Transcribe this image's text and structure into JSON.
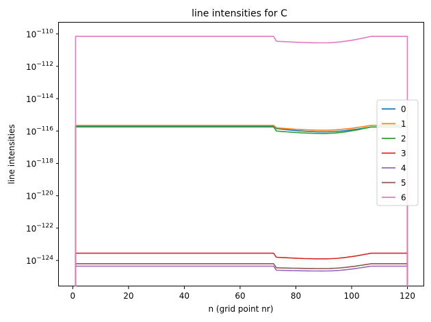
{
  "chart_data": {
    "type": "line",
    "title": "line intensities for C",
    "xlabel": "n (grid point nr)",
    "ylabel": "line intensities",
    "y_scale": "log",
    "xlim": [
      -5,
      126
    ],
    "ylim_exponents": [
      -125.6,
      -109.3
    ],
    "x_ticks": [
      0,
      20,
      40,
      60,
      80,
      100,
      120
    ],
    "y_ticks": [
      {
        "exp": -110,
        "base": "10",
        "sup": "−110"
      },
      {
        "exp": -112,
        "base": "10",
        "sup": "−112"
      },
      {
        "exp": -114,
        "base": "10",
        "sup": "−114"
      },
      {
        "exp": -116,
        "base": "10",
        "sup": "−116"
      },
      {
        "exp": -118,
        "base": "10",
        "sup": "−118"
      },
      {
        "exp": -120,
        "base": "10",
        "sup": "−120"
      },
      {
        "exp": -122,
        "base": "10",
        "sup": "−122"
      },
      {
        "exp": -124,
        "base": "10",
        "sup": "−124"
      }
    ],
    "grid": false,
    "legend_position": "right",
    "series": [
      {
        "name": "0",
        "color": "#1f77b4",
        "exponents": {
          "flat_left": -115.7,
          "drop": -115.85,
          "dip": -116.05,
          "flat_right": -115.75
        }
      },
      {
        "name": "1",
        "color": "#ff7f0e",
        "exponents": {
          "flat_left": -115.65,
          "drop": -115.8,
          "dip": -115.95,
          "flat_right": -115.65
        }
      },
      {
        "name": "2",
        "color": "#2ca02c",
        "exponents": {
          "flat_left": -115.75,
          "drop": -116.0,
          "dip": -116.15,
          "flat_right": -115.75
        }
      },
      {
        "name": "3",
        "color": "#d62728",
        "exponents": {
          "flat_left": -123.55,
          "drop": -123.8,
          "dip": -123.9,
          "flat_right": -123.55
        }
      },
      {
        "name": "4",
        "color": "#9467bd",
        "exponents": {
          "flat_left": -124.35,
          "drop": -124.6,
          "dip": -124.65,
          "flat_right": -124.35
        }
      },
      {
        "name": "5",
        "color": "#8c564b",
        "exponents": {
          "flat_left": -124.2,
          "drop": -124.45,
          "dip": -124.5,
          "flat_right": -124.2
        }
      },
      {
        "name": "6",
        "color": "#e377c2",
        "exponents": {
          "flat_left": -110.15,
          "drop": -110.45,
          "dip": -110.55,
          "flat_right": -110.15
        }
      }
    ],
    "x_segments": {
      "start": 1,
      "drop_start": 72,
      "drop_end": 73,
      "dip_min": 90,
      "rise_end": 107,
      "end": 120
    }
  }
}
